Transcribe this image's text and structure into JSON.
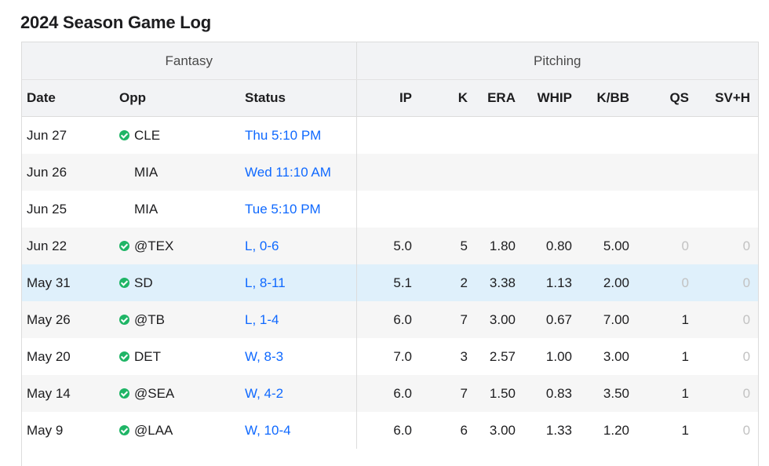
{
  "title": "2024 Season Game Log",
  "groups": {
    "fantasy": "Fantasy",
    "pitching": "Pitching"
  },
  "columns": {
    "date": "Date",
    "opp": "Opp",
    "status": "Status",
    "ip": "IP",
    "k": "K",
    "era": "ERA",
    "whip": "WHIP",
    "kbb": "K/BB",
    "qs": "QS",
    "svh": "SV+H"
  },
  "rows": [
    {
      "date": "Jun 27",
      "check": true,
      "opp": "CLE",
      "status": "Thu 5:10 PM",
      "ip": "",
      "k": "",
      "era": "",
      "whip": "",
      "kbb": "",
      "qs": "",
      "svh": ""
    },
    {
      "date": "Jun 26",
      "check": false,
      "opp": "MIA",
      "status": "Wed 11:10 AM",
      "ip": "",
      "k": "",
      "era": "",
      "whip": "",
      "kbb": "",
      "qs": "",
      "svh": ""
    },
    {
      "date": "Jun 25",
      "check": false,
      "opp": "MIA",
      "status": "Tue 5:10 PM",
      "ip": "",
      "k": "",
      "era": "",
      "whip": "",
      "kbb": "",
      "qs": "",
      "svh": ""
    },
    {
      "date": "Jun 22",
      "check": true,
      "opp": "@TEX",
      "status": "L, 0-6",
      "ip": "5.0",
      "k": "5",
      "era": "1.80",
      "whip": "0.80",
      "kbb": "5.00",
      "qs": "0",
      "svh": "0"
    },
    {
      "date": "May 31",
      "check": true,
      "opp": "SD",
      "status": "L, 8-11",
      "ip": "5.1",
      "k": "2",
      "era": "3.38",
      "whip": "1.13",
      "kbb": "2.00",
      "qs": "0",
      "svh": "0"
    },
    {
      "date": "May 26",
      "check": true,
      "opp": "@TB",
      "status": "L, 1-4",
      "ip": "6.0",
      "k": "7",
      "era": "3.00",
      "whip": "0.67",
      "kbb": "7.00",
      "qs": "1",
      "svh": "0"
    },
    {
      "date": "May 20",
      "check": true,
      "opp": "DET",
      "status": "W, 8-3",
      "ip": "7.0",
      "k": "3",
      "era": "2.57",
      "whip": "1.00",
      "kbb": "3.00",
      "qs": "1",
      "svh": "0"
    },
    {
      "date": "May 14",
      "check": true,
      "opp": "@SEA",
      "status": "W, 4-2",
      "ip": "6.0",
      "k": "7",
      "era": "1.50",
      "whip": "0.83",
      "kbb": "3.50",
      "qs": "1",
      "svh": "0"
    },
    {
      "date": "May 9",
      "check": true,
      "opp": "@LAA",
      "status": "W, 10-4",
      "ip": "6.0",
      "k": "6",
      "era": "3.00",
      "whip": "1.33",
      "kbb": "1.20",
      "qs": "1",
      "svh": "0"
    }
  ],
  "colors": {
    "link": "#0f69ff",
    "check": "#1fb566",
    "highlight": "#dff0fb",
    "muted": "#c2c2c2"
  }
}
